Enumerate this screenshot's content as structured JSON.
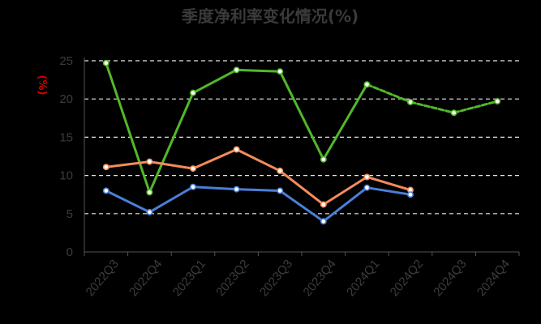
{
  "chart_data": {
    "type": "line",
    "title": "季度净利率变化情况(%)",
    "ylabel": "(%)",
    "xlabel": "",
    "categories": [
      "2022Q3",
      "2022Q4",
      "2023Q1",
      "2023Q2",
      "2023Q3",
      "2023Q4",
      "2024Q1",
      "2024Q2",
      "2024Q3",
      "2024Q4"
    ],
    "ylim": [
      0,
      25
    ],
    "yticks": [
      0,
      5,
      10,
      15,
      20,
      25
    ],
    "grid": true,
    "legend": "none",
    "series": [
      {
        "color": "#52b828",
        "values": [
          24.7,
          7.8,
          20.8,
          23.8,
          23.6,
          12.1,
          21.9,
          19.6,
          18.2,
          19.7
        ],
        "dashed_from_index": 6
      },
      {
        "color": "#f28c5a",
        "values": [
          11.1,
          11.8,
          10.9,
          13.4,
          10.6,
          6.2,
          9.8,
          8.1,
          null,
          null
        ]
      },
      {
        "color": "#4a7fd8",
        "values": [
          8.0,
          5.2,
          8.5,
          8.2,
          8.0,
          4.0,
          8.4,
          7.5,
          null,
          null
        ]
      }
    ]
  }
}
